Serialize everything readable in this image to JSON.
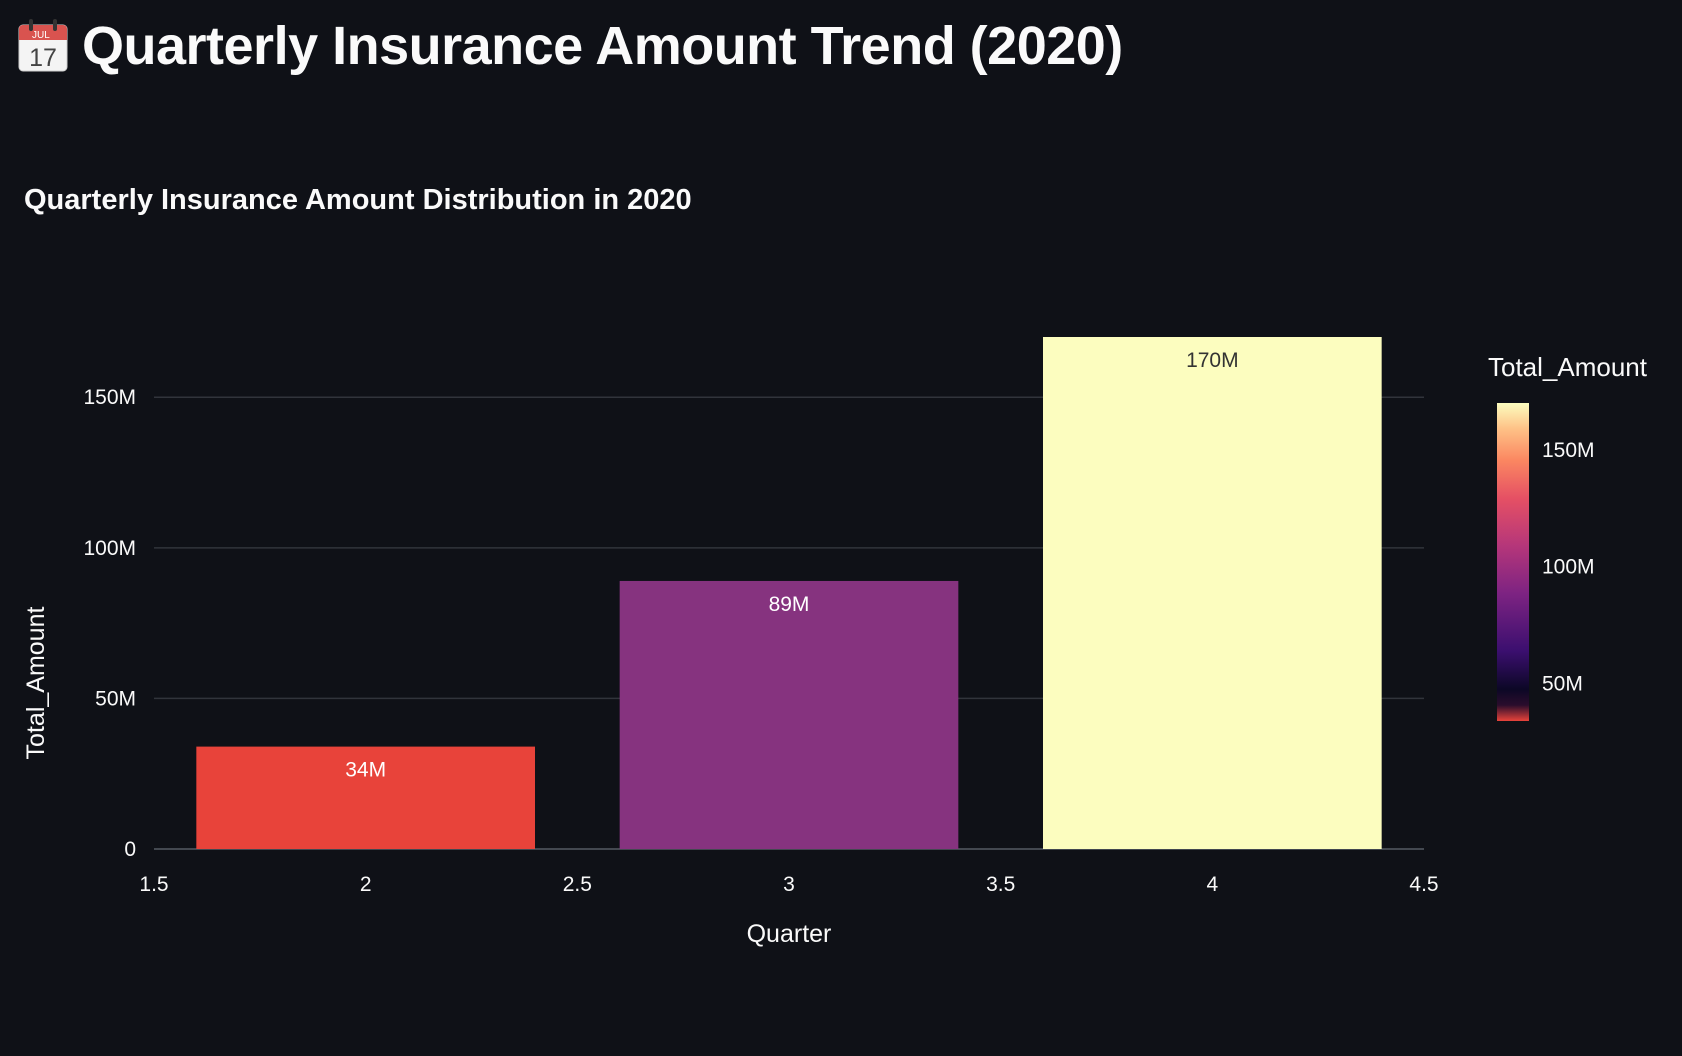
{
  "page": {
    "title": "Quarterly Insurance Amount Trend (2020)",
    "title_icon": "calendar-icon",
    "icon_month": "JUL",
    "icon_day": "17"
  },
  "chart_data": {
    "type": "bar",
    "title": "Quarterly Insurance Amount Distribution in 2020",
    "xlabel": "Quarter",
    "ylabel": "Total_Amount",
    "x": [
      2,
      3,
      4
    ],
    "values": [
      34000000,
      89000000,
      170000000
    ],
    "data_labels": [
      "34M",
      "89M",
      "170M"
    ],
    "bar_colors": [
      "#e8433a",
      "#86337f",
      "#fcfdbf"
    ],
    "data_label_colors": [
      "#ffffff",
      "#ffffff",
      "#333333"
    ],
    "xlim": [
      1.5,
      4.5
    ],
    "ylim": [
      0,
      170000000
    ],
    "x_ticks": [
      {
        "value": 1.5,
        "label": "1.5"
      },
      {
        "value": 2,
        "label": "2"
      },
      {
        "value": 2.5,
        "label": "2.5"
      },
      {
        "value": 3,
        "label": "3"
      },
      {
        "value": 3.5,
        "label": "3.5"
      },
      {
        "value": 4,
        "label": "4"
      },
      {
        "value": 4.5,
        "label": "4.5"
      }
    ],
    "y_ticks": [
      {
        "value": 0,
        "label": "0"
      },
      {
        "value": 50000000,
        "label": "50M"
      },
      {
        "value": 100000000,
        "label": "100M"
      },
      {
        "value": 150000000,
        "label": "150M"
      }
    ],
    "grid": true,
    "colorbar": {
      "title": "Total_Amount",
      "range": [
        34000000,
        170000000
      ],
      "ticks": [
        {
          "value": 50000000,
          "label": "50M"
        },
        {
          "value": 100000000,
          "label": "100M"
        },
        {
          "value": 150000000,
          "label": "150M"
        }
      ],
      "stops": [
        {
          "pos": 0.0,
          "color": "#e8433a"
        },
        {
          "pos": 0.05,
          "color": "#2a0d2c"
        },
        {
          "pos": 0.1,
          "color": "#0c0726"
        },
        {
          "pos": 0.22,
          "color": "#3b0f6f"
        },
        {
          "pos": 0.4,
          "color": "#7d2382"
        },
        {
          "pos": 0.55,
          "color": "#b5367a"
        },
        {
          "pos": 0.7,
          "color": "#e55064"
        },
        {
          "pos": 0.82,
          "color": "#fb8761"
        },
        {
          "pos": 0.92,
          "color": "#fec287"
        },
        {
          "pos": 1.0,
          "color": "#fcfdbf"
        }
      ]
    }
  }
}
